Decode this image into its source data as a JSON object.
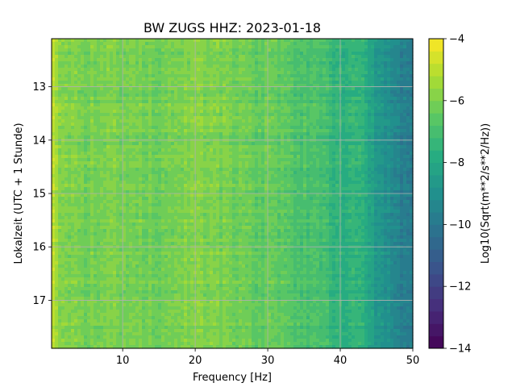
{
  "chart_data": {
    "type": "heatmap",
    "title": "BW ZUGS  HHZ: 2023-01-18",
    "xlabel": "Frequency [Hz]",
    "ylabel": "Lokalzeit (UTC + 1 Stunde)",
    "colorbar_label": "Log10(Sqrt(m**2/s**2/Hz))",
    "xlim": [
      0.2,
      50
    ],
    "ylim": [
      17.9,
      12.1
    ],
    "xticks": [
      10,
      20,
      30,
      40,
      50
    ],
    "yticks": [
      13,
      14,
      15,
      16,
      17
    ],
    "clim": [
      -14,
      -4
    ],
    "cticks": [
      -4,
      -6,
      -8,
      -10,
      -12,
      -14
    ],
    "colormap": "viridis",
    "grid": true,
    "spectrum_profile": [
      {
        "freq": 0.3,
        "value": -4.5
      },
      {
        "freq": 1,
        "value": -5.7
      },
      {
        "freq": 5,
        "value": -6.1
      },
      {
        "freq": 10,
        "value": -6.0
      },
      {
        "freq": 15,
        "value": -6.2
      },
      {
        "freq": 20,
        "value": -5.8
      },
      {
        "freq": 25,
        "value": -6.2
      },
      {
        "freq": 30,
        "value": -6.4
      },
      {
        "freq": 35,
        "value": -6.8
      },
      {
        "freq": 38,
        "value": -6.9
      },
      {
        "freq": 39.5,
        "value": -7.6
      },
      {
        "freq": 43,
        "value": -7.6
      },
      {
        "freq": 44,
        "value": -8.3
      },
      {
        "freq": 46,
        "value": -8.8
      },
      {
        "freq": 48,
        "value": -9.5
      },
      {
        "freq": 50,
        "value": -10.0
      }
    ]
  }
}
